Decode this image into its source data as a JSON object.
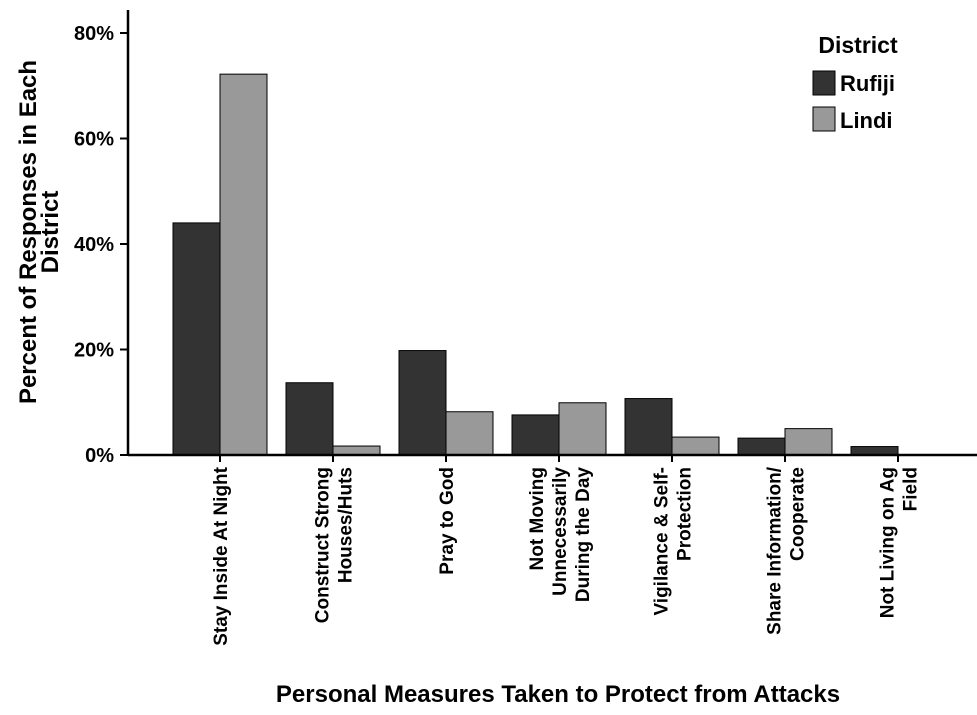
{
  "chart_data": {
    "type": "bar",
    "title": "",
    "xlabel": "Personal Measures Taken to Protect from Attacks",
    "ylabel": [
      "Percent of Responses in Each",
      "District"
    ],
    "ylim": [
      0,
      80
    ],
    "yticks": [
      "0%",
      "20%",
      "40%",
      "60%",
      "80%"
    ],
    "grid": false,
    "legend": {
      "title": "District",
      "position": "top-right"
    },
    "categories": [
      [
        "Stay Inside At Night"
      ],
      [
        "Construct Strong",
        "Houses/Huts"
      ],
      [
        "Pray to God"
      ],
      [
        "Not Moving",
        "Unnecessarily",
        "During the Day"
      ],
      [
        "Vigilance & Self-",
        "Protection"
      ],
      [
        "Share Information/",
        "Cooperate"
      ],
      [
        "Not Living on Ag",
        "Field"
      ]
    ],
    "series": [
      {
        "name": "Rufiji",
        "color": "#333333",
        "values": [
          44,
          13.7,
          19.8,
          7.6,
          10.7,
          3.2,
          1.6
        ]
      },
      {
        "name": "Lindi",
        "color": "#999999",
        "values": [
          72.2,
          1.7,
          8.2,
          9.9,
          3.4,
          5,
          0
        ]
      }
    ]
  }
}
